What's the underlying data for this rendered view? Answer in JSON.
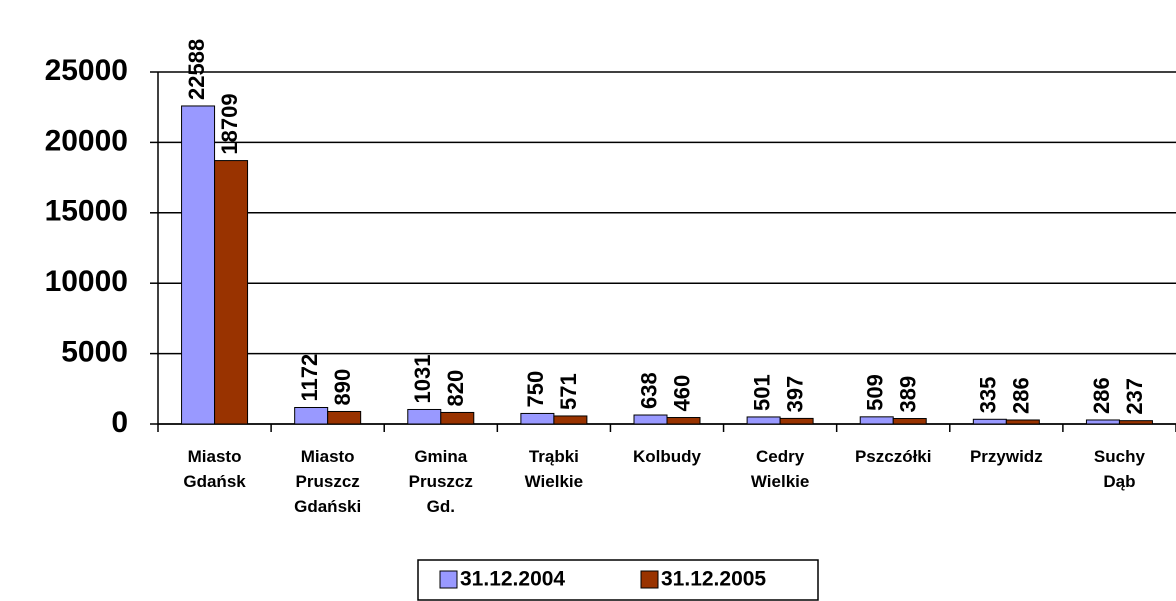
{
  "chart_data": {
    "type": "bar",
    "categories": [
      "Miasto Gdańsk",
      "Miasto Pruszcz Gdański",
      "Gmina Pruszcz Gd.",
      "Trąbki Wielkie",
      "Kolbudy",
      "Cedry Wielkie",
      "Pszczółki",
      "Przywidz",
      "Suchy Dąb"
    ],
    "series": [
      {
        "name": "31.12.2004",
        "color": "#9999ff",
        "values": [
          22588,
          1172,
          1031,
          750,
          638,
          501,
          509,
          335,
          286
        ]
      },
      {
        "name": "31.12.2005",
        "color": "#993300",
        "values": [
          18709,
          890,
          820,
          571,
          460,
          397,
          389,
          286,
          237
        ]
      }
    ],
    "ylim": [
      0,
      25000
    ],
    "yticks": [
      0,
      5000,
      10000,
      15000,
      20000,
      25000
    ],
    "grid": true,
    "legend": "bottom"
  }
}
